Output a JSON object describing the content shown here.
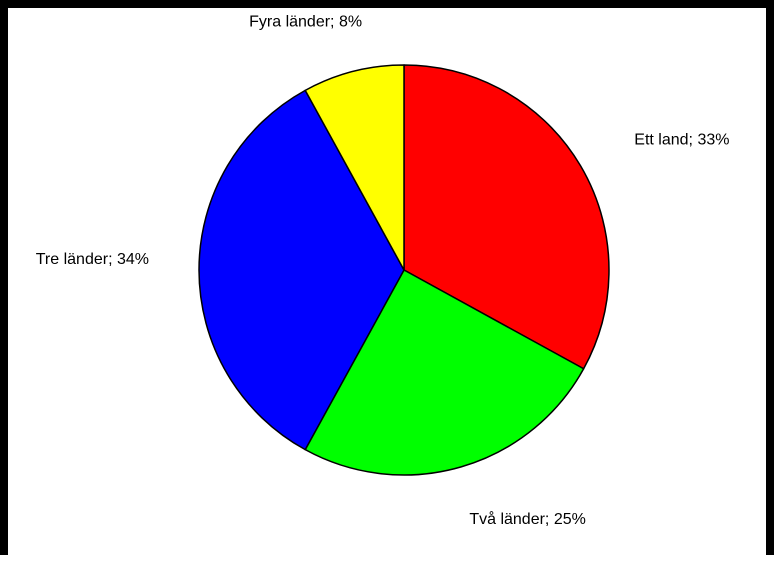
{
  "chart_data": {
    "type": "pie",
    "start_angle_deg": 0,
    "direction": "clockwise",
    "slices": [
      {
        "label": "Ett land",
        "value": 33,
        "color": "#ff0000"
      },
      {
        "label": "Två länder",
        "value": 25,
        "color": "#00ff00"
      },
      {
        "label": "Tre länder",
        "value": 34,
        "color": "#0000ff"
      },
      {
        "label": "Fyra länder",
        "value": 8,
        "color": "#ffff00"
      }
    ],
    "data_label_format": "{label}; {value}%",
    "stroke_color": "#000000"
  }
}
